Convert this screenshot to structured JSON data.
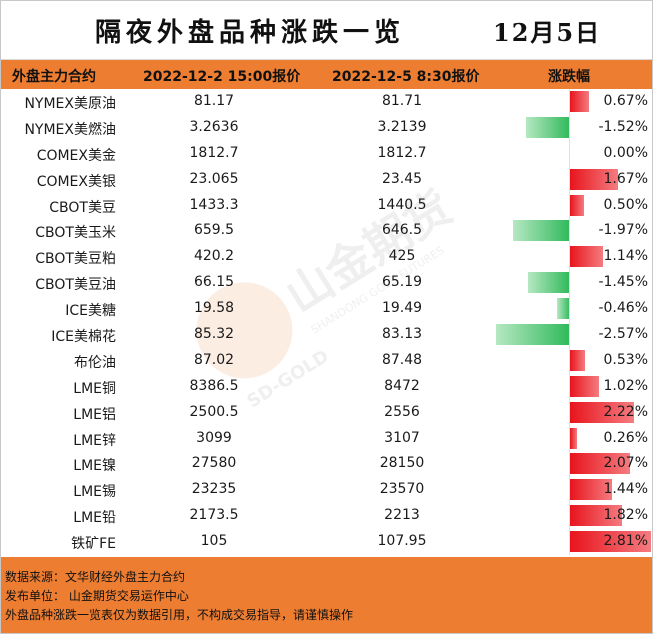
{
  "title": "隔夜外盘品种涨跌一览",
  "date": "12月5日",
  "columns": {
    "name": "外盘主力合约",
    "price1": "2022-12-2 15:00报价",
    "price2": "2022-12-5 8:30报价",
    "change": "涨跌幅"
  },
  "rows": [
    {
      "name": "NYMEX美原油",
      "p1": "81.17",
      "p2": "81.71",
      "chg": "0.67%",
      "pct": 0.67
    },
    {
      "name": "NYMEX美燃油",
      "p1": "3.2636",
      "p2": "3.2139",
      "chg": "-1.52%",
      "pct": -1.52
    },
    {
      "name": "COMEX美金",
      "p1": "1812.7",
      "p2": "1812.7",
      "chg": "0.00%",
      "pct": 0
    },
    {
      "name": "COMEX美银",
      "p1": "23.065",
      "p2": "23.45",
      "chg": "1.67%",
      "pct": 1.67
    },
    {
      "name": "CBOT美豆",
      "p1": "1433.3",
      "p2": "1440.5",
      "chg": "0.50%",
      "pct": 0.5
    },
    {
      "name": "CBOT美玉米",
      "p1": "659.5",
      "p2": "646.5",
      "chg": "-1.97%",
      "pct": -1.97
    },
    {
      "name": "CBOT美豆粕",
      "p1": "420.2",
      "p2": "425",
      "chg": "1.14%",
      "pct": 1.14
    },
    {
      "name": "CBOT美豆油",
      "p1": "66.15",
      "p2": "65.19",
      "chg": "-1.45%",
      "pct": -1.45
    },
    {
      "name": "ICE美糖",
      "p1": "19.58",
      "p2": "19.49",
      "chg": "-0.46%",
      "pct": -0.46
    },
    {
      "name": "ICE美棉花",
      "p1": "85.32",
      "p2": "83.13",
      "chg": "-2.57%",
      "pct": -2.57
    },
    {
      "name": "布伦油",
      "p1": "87.02",
      "p2": "87.48",
      "chg": "0.53%",
      "pct": 0.53
    },
    {
      "name": "LME铜",
      "p1": "8386.5",
      "p2": "8472",
      "chg": "1.02%",
      "pct": 1.02
    },
    {
      "name": "LME铝",
      "p1": "2500.5",
      "p2": "2556",
      "chg": "2.22%",
      "pct": 2.22
    },
    {
      "name": "LME锌",
      "p1": "3099",
      "p2": "3107",
      "chg": "0.26%",
      "pct": 0.26
    },
    {
      "name": "LME镍",
      "p1": "27580",
      "p2": "28150",
      "chg": "2.07%",
      "pct": 2.07
    },
    {
      "name": "LME锡",
      "p1": "23235",
      "p2": "23570",
      "chg": "1.44%",
      "pct": 1.44
    },
    {
      "name": "LME铅",
      "p1": "2173.5",
      "p2": "2213",
      "chg": "1.82%",
      "pct": 1.82
    },
    {
      "name": "铁矿FE",
      "p1": "105",
      "p2": "107.95",
      "chg": "2.81%",
      "pct": 2.81
    }
  ],
  "footer": {
    "source": "数据来源：文华财经外盘主力合约",
    "publisher": "发布单位：  山金期货交易运作中心",
    "disclaimer": "外盘品种涨跌一览表仅为数据引用，不构成交易指导，请谨慎操作"
  },
  "watermark": {
    "brand_cn": "山金期货",
    "brand_en": "SHANDONG GOLD FUTURES",
    "sub": "SD-GOLD"
  },
  "colors": {
    "accent": "#ed7d31",
    "up": "#e8141d",
    "down": "#2fb95a"
  }
}
